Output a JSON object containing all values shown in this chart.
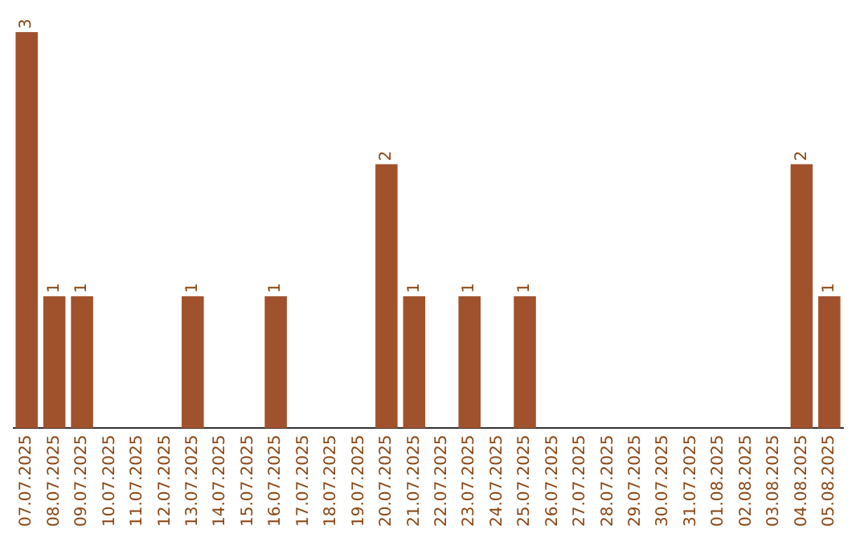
{
  "chart_data": {
    "type": "bar",
    "categories": [
      "07.07.2025",
      "08.07.2025",
      "09.07.2025",
      "10.07.2025",
      "11.07.2025",
      "12.07.2025",
      "13.07.2025",
      "14.07.2025",
      "15.07.2025",
      "16.07.2025",
      "17.07.2025",
      "18.07.2025",
      "19.07.2025",
      "20.07.2025",
      "21.07.2025",
      "22.07.2025",
      "23.07.2025",
      "24.07.2025",
      "25.07.2025",
      "26.07.2025",
      "27.07.2025",
      "28.07.2025",
      "29.07.2025",
      "30.07.2025",
      "31.07.2025",
      "01.08.2025",
      "02.08.2025",
      "03.08.2025",
      "04.08.2025",
      "05.08.2025"
    ],
    "values": [
      3,
      1,
      1,
      0,
      0,
      0,
      1,
      0,
      0,
      1,
      0,
      0,
      0,
      2,
      1,
      0,
      1,
      0,
      1,
      0,
      0,
      0,
      0,
      0,
      0,
      0,
      0,
      0,
      2,
      1
    ],
    "value_labels": [
      "3",
      "1",
      "1",
      null,
      null,
      null,
      "1",
      null,
      null,
      "1",
      null,
      null,
      null,
      "2",
      "1",
      null,
      "1",
      null,
      "1",
      null,
      null,
      null,
      null,
      null,
      null,
      null,
      null,
      null,
      "2",
      "1"
    ],
    "color": "#a0522d",
    "grid": false,
    "legend": false
  }
}
